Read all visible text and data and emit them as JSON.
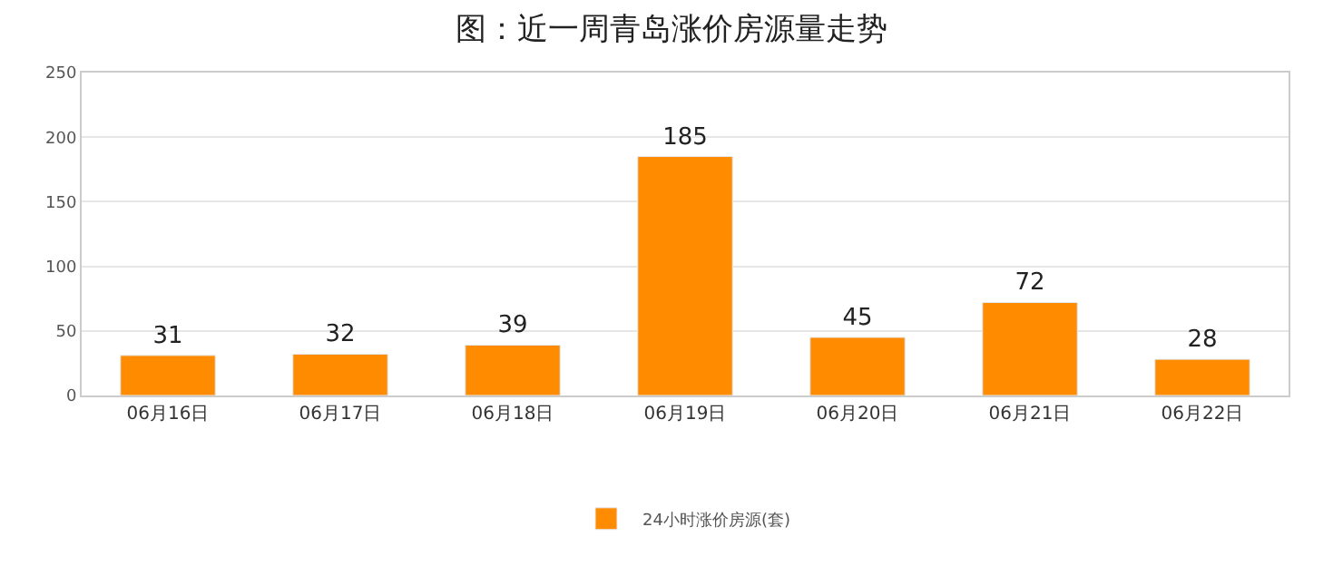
{
  "chart_data": {
    "type": "bar",
    "title": "图：近一周青岛涨价房源量走势",
    "categories": [
      "06月16日",
      "06月17日",
      "06月18日",
      "06月19日",
      "06月20日",
      "06月21日",
      "06月22日"
    ],
    "series": [
      {
        "name": "24小时涨价房源(套)",
        "color": "#ff8c00",
        "values": [
          31,
          32,
          39,
          185,
          45,
          72,
          28
        ]
      }
    ],
    "ylim": [
      0,
      250
    ],
    "yticks": [
      0,
      50,
      100,
      150,
      200,
      250
    ],
    "grid": "y",
    "legend": "bottom",
    "data_labels": true
  }
}
